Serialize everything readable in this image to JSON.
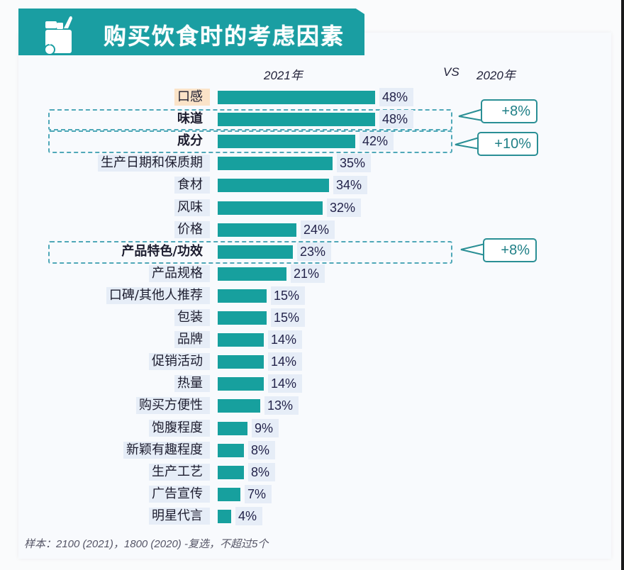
{
  "header": {
    "title": "购买饮食时的考虑因素",
    "icon": "grocery-bag-icon",
    "year_current": "2021年",
    "vs": "VS",
    "year_prev": "2020年"
  },
  "colors": {
    "banner": "#1a9ea2",
    "bar": "#17a09e",
    "callout_border": "#2a8f95",
    "dashed_box": "#4fa8b8",
    "label_bg": "#e6edf7",
    "highlight_bg": "#fbe3c8"
  },
  "rows": [
    {
      "label": "口感",
      "value": 48,
      "display": "48%"
    },
    {
      "label": "味道",
      "value": 48,
      "display": "48%"
    },
    {
      "label": "成分",
      "value": 42,
      "display": "42%"
    },
    {
      "label": "生产日期和保质期",
      "value": 35,
      "display": "35%"
    },
    {
      "label": "食材",
      "value": 34,
      "display": "34%"
    },
    {
      "label": "风味",
      "value": 32,
      "display": "32%"
    },
    {
      "label": "价格",
      "value": 24,
      "display": "24%"
    },
    {
      "label": "产品特色/功效",
      "value": 23,
      "display": "23%"
    },
    {
      "label": "产品规格",
      "value": 21,
      "display": "21%"
    },
    {
      "label": "口碑/其他人推荐",
      "value": 15,
      "display": "15%"
    },
    {
      "label": "包装",
      "value": 15,
      "display": "15%"
    },
    {
      "label": "品牌",
      "value": 14,
      "display": "14%"
    },
    {
      "label": "促销活动",
      "value": 14,
      "display": "14%"
    },
    {
      "label": "热量",
      "value": 14,
      "display": "14%"
    },
    {
      "label": "购买方便性",
      "value": 13,
      "display": "13%"
    },
    {
      "label": "饱腹程度",
      "value": 9,
      "display": "9%"
    },
    {
      "label": "新颖有趣程度",
      "value": 8,
      "display": "8%"
    },
    {
      "label": "生产工艺",
      "value": 8,
      "display": "8%"
    },
    {
      "label": "广告宣传",
      "value": 7,
      "display": "7%"
    },
    {
      "label": "明星代言",
      "value": 4,
      "display": "4%"
    }
  ],
  "callouts": [
    {
      "target": "味道",
      "text": "+8%"
    },
    {
      "target": "成分",
      "text": "+10%"
    },
    {
      "target": "产品特色/功效",
      "text": "+8%"
    }
  ],
  "footnote": "样本：2100 (2021)，1800 (2020) -复选，不超过5个",
  "chart_data": {
    "type": "bar",
    "orientation": "horizontal",
    "title": "购买饮食时的考虑因素",
    "subtitle": "2021年 VS 2020年",
    "categories": [
      "口感",
      "味道",
      "成分",
      "生产日期和保质期",
      "食材",
      "风味",
      "价格",
      "产品特色/功效",
      "产品规格",
      "口碑/其他人推荐",
      "包装",
      "品牌",
      "促销活动",
      "热量",
      "购买方便性",
      "饱腹程度",
      "新颖有趣程度",
      "生产工艺",
      "广告宣传",
      "明星代言"
    ],
    "series": [
      {
        "name": "2021年",
        "values": [
          48,
          48,
          42,
          35,
          34,
          32,
          24,
          23,
          21,
          15,
          15,
          14,
          14,
          14,
          13,
          9,
          8,
          8,
          7,
          4
        ]
      }
    ],
    "annotations": [
      {
        "category": "味道",
        "text": "+8%",
        "meaning": "vs 2020"
      },
      {
        "category": "成分",
        "text": "+10%",
        "meaning": "vs 2020"
      },
      {
        "category": "产品特色/功效",
        "text": "+8%",
        "meaning": "vs 2020"
      }
    ],
    "unit": "%",
    "xlabel": "",
    "ylabel": "",
    "grid": false,
    "legend": "none",
    "note": "样本：2100 (2021)，1800 (2020) -复选，不超过5个"
  }
}
